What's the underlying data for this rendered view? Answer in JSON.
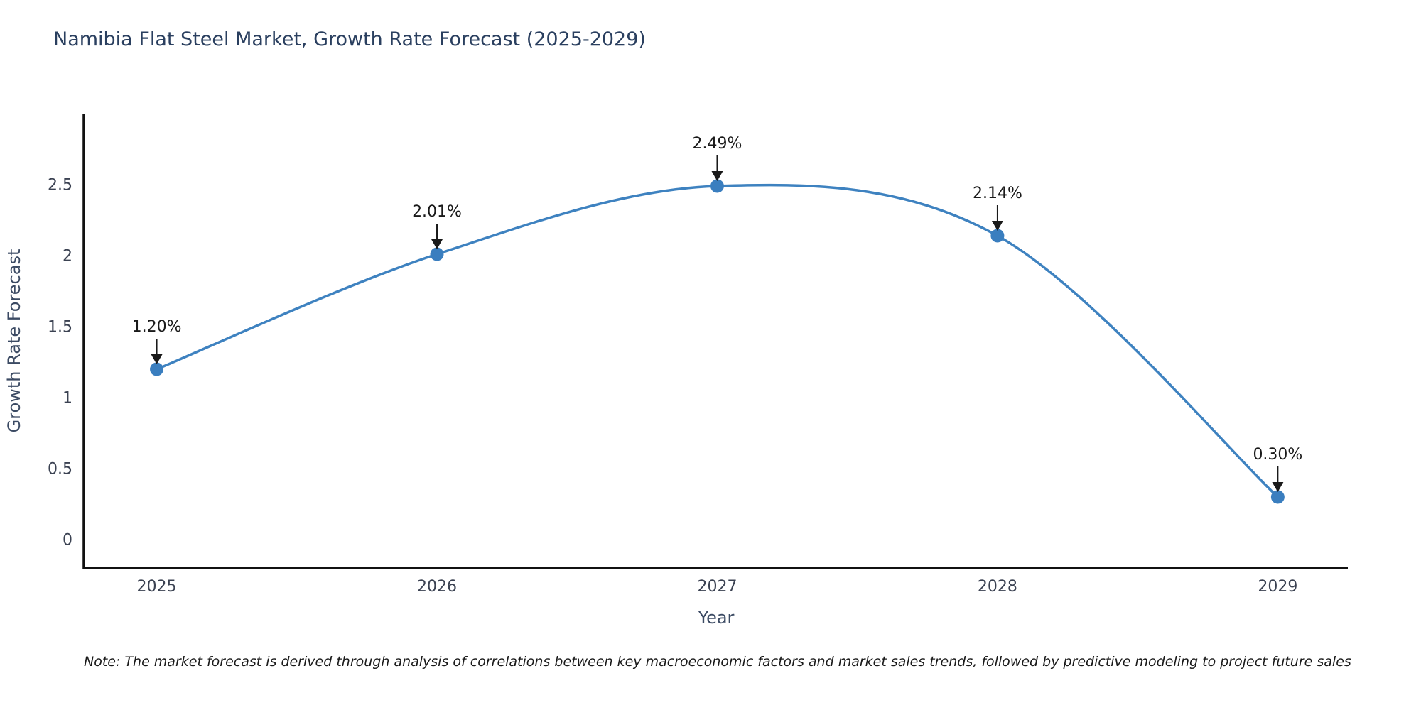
{
  "title": "Namibia Flat Steel Market, Growth Rate Forecast (2025-2029)",
  "note": "Note: The market forecast is derived through analysis of correlations between key macroeconomic factors and market sales trends, followed by predictive modeling to project future sales",
  "chart_data": {
    "type": "line",
    "title": "Namibia Flat Steel Market, Growth Rate Forecast (2025-2029)",
    "xlabel": "Year",
    "ylabel": "Growth Rate Forecast",
    "x": [
      2025,
      2026,
      2027,
      2028,
      2029
    ],
    "series": [
      {
        "name": "Growth Rate Forecast",
        "values": [
          1.2,
          2.01,
          2.49,
          2.14,
          0.3
        ]
      }
    ],
    "point_labels": [
      "1.20%",
      "2.01%",
      "2.49%",
      "2.14%",
      "0.30%"
    ],
    "xticks": {
      "values": [
        2025,
        2026,
        2027,
        2028,
        2029
      ],
      "labels": [
        "2025",
        "2026",
        "2027",
        "2028",
        "2029"
      ]
    },
    "yticks": {
      "values": [
        0,
        0.5,
        1,
        1.5,
        2,
        2.5
      ],
      "labels": [
        "0",
        "0.5",
        "1",
        "1.5",
        "2",
        "2.5"
      ]
    },
    "xlim": [
      2024.74,
      2029.25
    ],
    "ylim": [
      -0.2,
      3.0
    ],
    "grid": false,
    "legend": "none",
    "line_shape": "spline",
    "colors": {
      "line": "#3e82c0",
      "marker": "#3a7ebf",
      "axis": "#111111",
      "annotation": "#1a1a1a",
      "tick_text": "#3b4252",
      "title_text": "#2a3f5f"
    }
  }
}
